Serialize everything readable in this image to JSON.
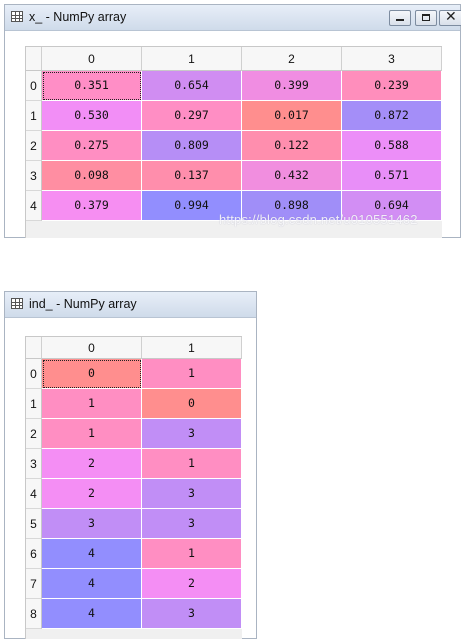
{
  "window1": {
    "title": "x_ - NumPy array",
    "columns": [
      "0",
      "1",
      "2",
      "3"
    ],
    "rows": [
      "0",
      "1",
      "2",
      "3",
      "4"
    ],
    "cells": [
      [
        "0.351",
        "0.654",
        "0.399",
        "0.239"
      ],
      [
        "0.530",
        "0.297",
        "0.017",
        "0.872"
      ],
      [
        "0.275",
        "0.809",
        "0.122",
        "0.588"
      ],
      [
        "0.098",
        "0.137",
        "0.432",
        "0.571"
      ],
      [
        "0.379",
        "0.994",
        "0.898",
        "0.694"
      ]
    ],
    "colors": [
      [
        "#ff8ec6",
        "#d08df2",
        "#f08de2",
        "#ff8ebc"
      ],
      [
        "#f28ef6",
        "#ff8ec4",
        "#ff8e8e",
        "#a48ef8"
      ],
      [
        "#ff8ec2",
        "#b68ef6",
        "#ff8eae",
        "#ec8ef8"
      ],
      [
        "#ff8ea2",
        "#ff8eac",
        "#f18edf",
        "#e88ef8"
      ],
      [
        "#f68ef2",
        "#928efe",
        "#a08ef8",
        "#d28ef4"
      ]
    ],
    "selected": [
      0,
      0
    ]
  },
  "window2": {
    "title": "ind_ - NumPy array",
    "columns": [
      "0",
      "1"
    ],
    "rows": [
      "0",
      "1",
      "2",
      "3",
      "4",
      "5",
      "6",
      "7",
      "8"
    ],
    "cells": [
      [
        "0",
        "1"
      ],
      [
        "1",
        "0"
      ],
      [
        "1",
        "3"
      ],
      [
        "2",
        "1"
      ],
      [
        "2",
        "3"
      ],
      [
        "3",
        "3"
      ],
      [
        "4",
        "1"
      ],
      [
        "4",
        "2"
      ],
      [
        "4",
        "3"
      ]
    ],
    "colors": [
      [
        "#ff8e8e",
        "#ff8ec2"
      ],
      [
        "#ff8ec2",
        "#ff8e8e"
      ],
      [
        "#ff8ec2",
        "#c18ef6"
      ],
      [
        "#f48ef4",
        "#ff8ec2"
      ],
      [
        "#f48ef4",
        "#c18ef6"
      ],
      [
        "#c18ef6",
        "#c18ef6"
      ],
      [
        "#928efe",
        "#ff8ec2"
      ],
      [
        "#928efe",
        "#f48ef4"
      ],
      [
        "#928efe",
        "#c18ef6"
      ]
    ],
    "selected": [
      0,
      0
    ]
  },
  "watermark": "https://blog.csdn.net/u010551462"
}
